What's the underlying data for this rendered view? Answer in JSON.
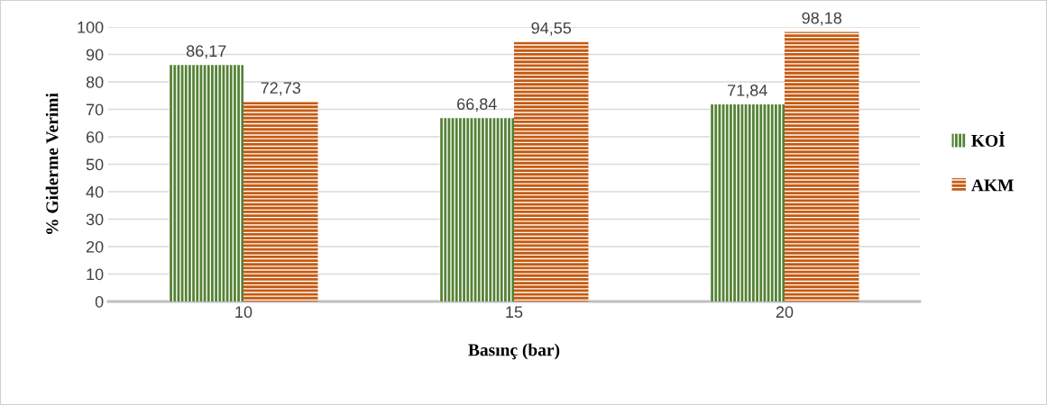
{
  "chart_data": {
    "type": "bar",
    "xlabel": "Basınç (bar)",
    "ylabel": "% Giderme Verimi",
    "categories": [
      "10",
      "15",
      "20"
    ],
    "series": [
      {
        "name": "KOİ",
        "color": "#548235",
        "values": [
          86.17,
          66.84,
          71.84
        ],
        "value_labels": [
          "86,17",
          "66,84",
          "71,84"
        ]
      },
      {
        "name": "AKM",
        "color": "#c55a11",
        "values": [
          72.73,
          94.55,
          98.18
        ],
        "value_labels": [
          "72,73",
          "94,55",
          "98,18"
        ]
      }
    ],
    "ylim": [
      0,
      100
    ],
    "yticks": [
      0,
      10,
      20,
      30,
      40,
      50,
      60,
      70,
      80,
      90,
      100
    ],
    "grid": "y",
    "legend": "right"
  }
}
